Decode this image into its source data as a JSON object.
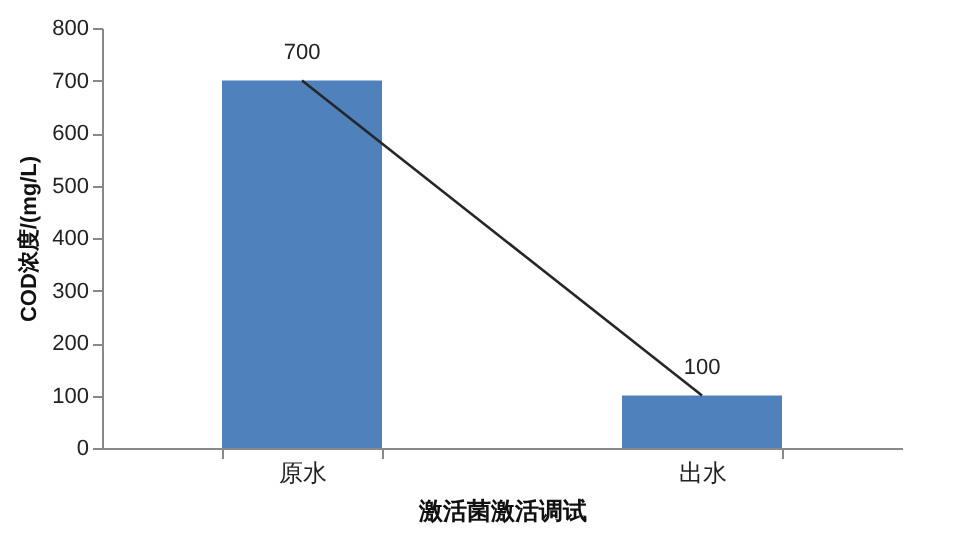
{
  "chart_data": {
    "type": "bar",
    "xlabel": "激活菌激活调试",
    "ylabel": "COD浓度/(mg/L)",
    "categories": [
      "原水",
      "出水"
    ],
    "series": [
      {
        "color": "#4f81bd",
        "values": [
          700,
          100
        ],
        "value_labels": [
          "700",
          "100"
        ]
      },
      {
        "type": "line",
        "color": "#262626",
        "values": [
          700,
          100
        ]
      }
    ],
    "ylim": [
      0,
      800
    ],
    "yticks": [
      0,
      100,
      200,
      300,
      400,
      500,
      600,
      700,
      800
    ],
    "grid": false
  }
}
